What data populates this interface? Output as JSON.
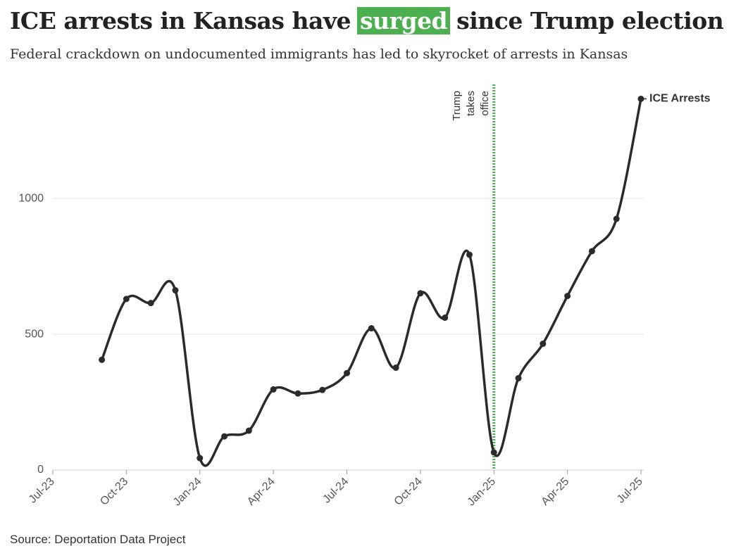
{
  "chart_data": {
    "type": "line",
    "title": [
      "ICE arrests in Kansas have",
      "surged",
      "since Trump election"
    ],
    "subtitle": "Federal crackdown on undocumented immigrants has led to skyrocket of arrests in Kansas",
    "source": "Source: Deportation Data Project",
    "x": [
      "2023-09",
      "2023-10",
      "2023-11",
      "2023-12",
      "2024-01",
      "2024-02",
      "2024-03",
      "2024-04",
      "2024-05",
      "2024-06",
      "2024-07",
      "2024-08",
      "2024-09",
      "2024-10",
      "2024-11",
      "2024-12",
      "2025-01",
      "2025-02",
      "2025-03",
      "2025-04",
      "2025-05",
      "2025-06",
      "2025-07"
    ],
    "series": [
      {
        "name": "ICE Arrests",
        "color": "#2b2b2b",
        "values": [
          406,
          630,
          615,
          662,
          44,
          124,
          145,
          297,
          282,
          295,
          357,
          522,
          377,
          651,
          561,
          793,
          65,
          338,
          465,
          641,
          806,
          925,
          1367
        ]
      }
    ],
    "xlim": [
      "2023-07",
      "2025-07"
    ],
    "xticks": [
      {
        "value": "2023-07",
        "label": "Jul-23"
      },
      {
        "value": "2023-10",
        "label": "Oct-23"
      },
      {
        "value": "2024-01",
        "label": "Jan-24"
      },
      {
        "value": "2024-04",
        "label": "Apr-24"
      },
      {
        "value": "2024-07",
        "label": "Jul-24"
      },
      {
        "value": "2024-10",
        "label": "Oct-24"
      },
      {
        "value": "2025-01",
        "label": "Jan-25"
      },
      {
        "value": "2025-04",
        "label": "Apr-25"
      },
      {
        "value": "2025-07",
        "label": "Jul-25"
      }
    ],
    "ylim": [
      0,
      1420
    ],
    "yticks": [
      0,
      500,
      1000
    ],
    "grid": true,
    "annotation": {
      "text": [
        "Trump",
        "takes",
        "office"
      ],
      "x": "2025-01",
      "color": "#4caf50"
    }
  }
}
